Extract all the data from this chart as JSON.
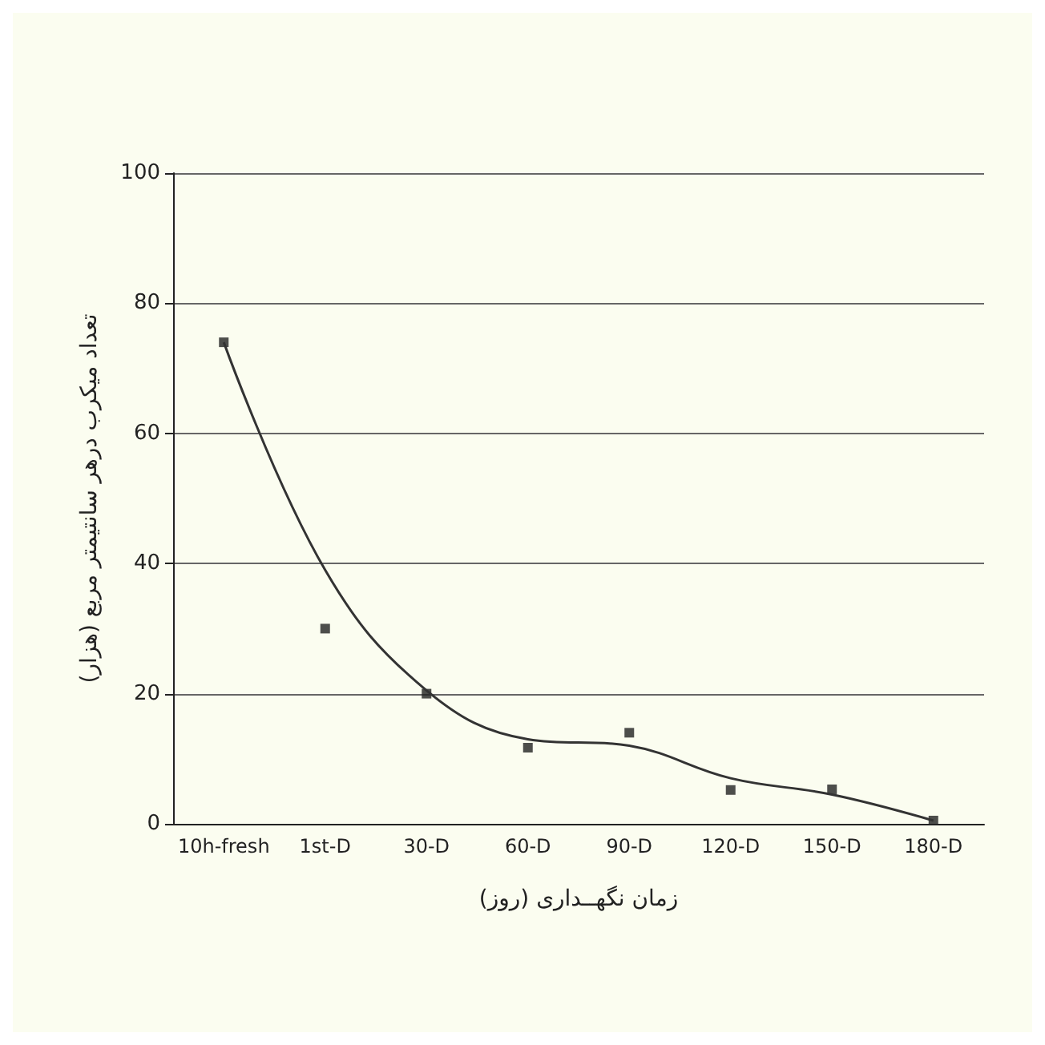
{
  "chart_data": {
    "type": "scatter",
    "xlabel": "زمان نگهــداری (روز)",
    "ylabel": "تعداد میکرب درهر سانتیمتر مربع (هزار)",
    "categories": [
      "10h-fresh",
      "1st-D",
      "30-D",
      "60-D",
      "90-D",
      "120-D",
      "150-D",
      "180-D"
    ],
    "series": [
      {
        "marker": "square",
        "color": "#222222",
        "values": [
          74,
          30,
          20,
          11.7,
          14,
          5.2,
          5.3,
          0.5
        ]
      },
      {
        "type": "line",
        "marker": "none",
        "color": "#333333",
        "values": [
          74,
          39,
          20.5,
          13,
          12,
          7,
          4.5,
          0.5
        ]
      }
    ],
    "ylim": [
      0,
      100
    ],
    "yticks": [
      0,
      20,
      40,
      60,
      80,
      100
    ],
    "grid": "y",
    "line_style": "solid"
  }
}
